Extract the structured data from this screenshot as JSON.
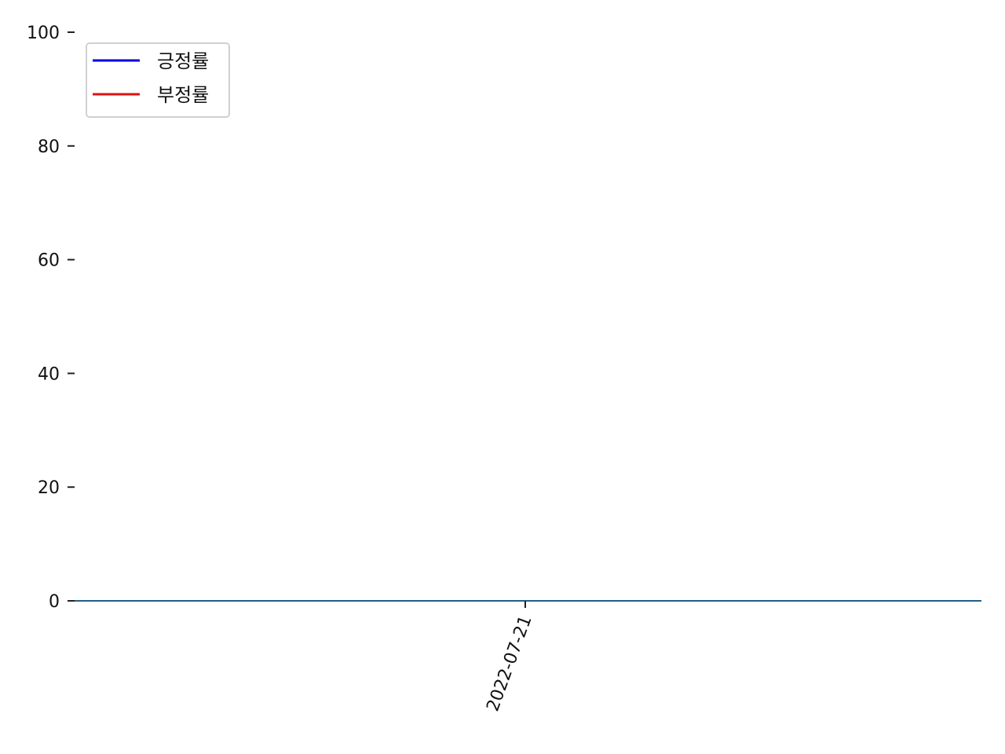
{
  "chart_data": {
    "type": "line",
    "title": "",
    "xlabel": "",
    "ylabel": "",
    "x": [
      "2022-07-21"
    ],
    "xticks": [
      "2022-07-21"
    ],
    "ylim": [
      0,
      100
    ],
    "yticks": [
      0,
      20,
      40,
      60,
      80,
      100
    ],
    "grid": false,
    "legend": {
      "position": "top-left"
    },
    "series": [
      {
        "name": "긍정률",
        "color": "#0000dd",
        "values": [
          0
        ]
      },
      {
        "name": "부정률",
        "color": "#dd1111",
        "values": [
          0
        ]
      }
    ],
    "baseline_color": "#1f5f8a"
  }
}
